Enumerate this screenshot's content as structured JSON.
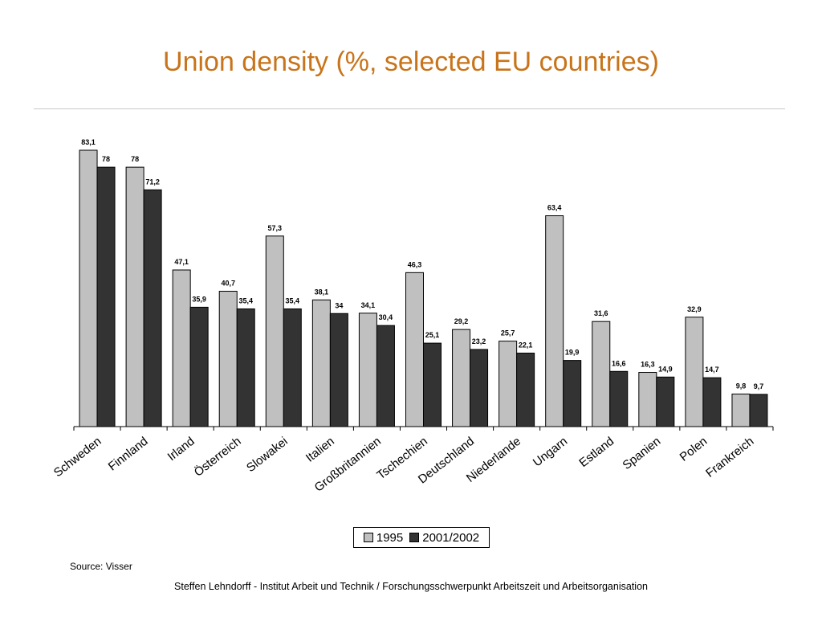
{
  "header": {
    "title": "Union density (%, selected EU countries)"
  },
  "chart_data": {
    "type": "bar",
    "title": "Union density (%, selected EU countries)",
    "categories": [
      "Schweden",
      "Finnland",
      "Irland",
      "Österreich",
      "Slowakei",
      "Italien",
      "Großbritannien",
      "Tschechien",
      "Deutschland",
      "Niederlande",
      "Ungarn",
      "Estland",
      "Spanien",
      "Polen",
      "Frankreich"
    ],
    "series": [
      {
        "name": "1995",
        "values": [
          83.1,
          78,
          47.1,
          40.7,
          57.3,
          38.1,
          34.1,
          46.3,
          29.2,
          25.7,
          63.4,
          31.6,
          16.3,
          32.9,
          9.8
        ],
        "labels": [
          "83,1",
          "78",
          "47,1",
          "40,7",
          "57,3",
          "38,1",
          "34,1",
          "46,3",
          "29,2",
          "25,7",
          "63,4",
          "31,6",
          "16,3",
          "32,9",
          "9,8"
        ],
        "color": "#c0c0c0"
      },
      {
        "name": "2001/2002",
        "values": [
          78,
          71.2,
          35.9,
          35.4,
          35.4,
          34,
          30.4,
          25.1,
          23.2,
          22.1,
          19.9,
          16.6,
          14.9,
          14.7,
          9.7
        ],
        "labels": [
          "78",
          "71,2",
          "35,9",
          "35,4",
          "35,4",
          "34",
          "30,4",
          "25,1",
          "23,2",
          "22,1",
          "19,9",
          "16,6",
          "14,9",
          "14,7",
          "9,7"
        ],
        "color": "#333333"
      }
    ],
    "ylim": [
      0,
      85
    ],
    "xlabel": "",
    "ylabel": "",
    "grid": false,
    "legend": "bottom"
  },
  "legend": {
    "items": [
      {
        "label": "1995",
        "color": "#c0c0c0"
      },
      {
        "label": "2001/2002",
        "color": "#333333"
      }
    ]
  },
  "source": "Source: Visser",
  "footer": "Steffen Lehndorff - Institut Arbeit und Technik / Forschungsschwerpunkt Arbeitszeit und Arbeitsorganisation"
}
